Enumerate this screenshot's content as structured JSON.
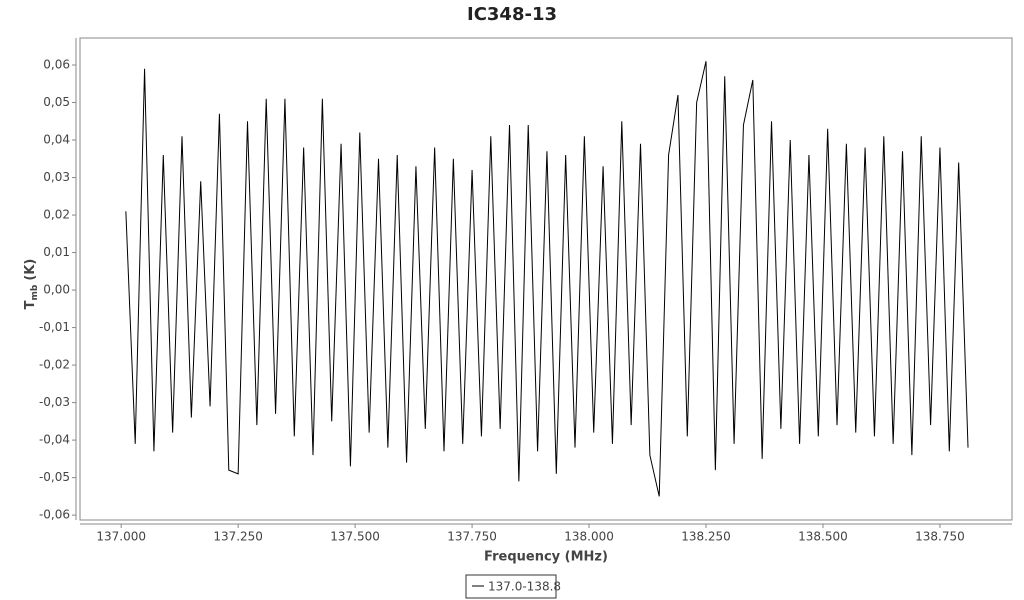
{
  "chart_data": {
    "type": "line",
    "title": "IC348-13",
    "xlabel": "Frequency (MHz)",
    "ylabel": {
      "main": "T",
      "sub": "mb",
      "unit": "(K)"
    },
    "xlim": [
      136.912,
      138.904
    ],
    "ylim": [
      -0.0613,
      0.0672
    ],
    "xticks": [
      {
        "value": 137.0,
        "label": "137.000"
      },
      {
        "value": 137.25,
        "label": "137.250"
      },
      {
        "value": 137.5,
        "label": "137.500"
      },
      {
        "value": 137.75,
        "label": "137.750"
      },
      {
        "value": 138.0,
        "label": "138.000"
      },
      {
        "value": 138.25,
        "label": "138.250"
      },
      {
        "value": 138.5,
        "label": "138.500"
      },
      {
        "value": 138.75,
        "label": "138.750"
      }
    ],
    "yticks": [
      {
        "value": -0.06,
        "label": "-0,06"
      },
      {
        "value": -0.05,
        "label": "-0,05"
      },
      {
        "value": -0.04,
        "label": "-0,04"
      },
      {
        "value": -0.03,
        "label": "-0,03"
      },
      {
        "value": -0.02,
        "label": "-0,02"
      },
      {
        "value": -0.01,
        "label": "-0,01"
      },
      {
        "value": 0.0,
        "label": "0,00"
      },
      {
        "value": 0.01,
        "label": "0,01"
      },
      {
        "value": 0.02,
        "label": "0,02"
      },
      {
        "value": 0.03,
        "label": "0,03"
      },
      {
        "value": 0.04,
        "label": "0,04"
      },
      {
        "value": 0.05,
        "label": "0,05"
      },
      {
        "value": 0.06,
        "label": "0,06"
      }
    ],
    "grid": false,
    "legend": "bottom",
    "x": [
      137.01,
      137.03,
      137.05,
      137.07,
      137.09,
      137.11,
      137.13,
      137.15,
      137.17,
      137.19,
      137.21,
      137.23,
      137.25,
      137.27,
      137.29,
      137.31,
      137.33,
      137.35,
      137.37,
      137.39,
      137.41,
      137.43,
      137.45,
      137.47,
      137.49,
      137.51,
      137.53,
      137.55,
      137.57,
      137.59,
      137.61,
      137.63,
      137.65,
      137.67,
      137.69,
      137.71,
      137.73,
      137.75,
      137.77,
      137.79,
      137.81,
      137.83,
      137.85,
      137.87,
      137.89,
      137.91,
      137.93,
      137.95,
      137.97,
      137.99,
      138.01,
      138.03,
      138.05,
      138.07,
      138.09,
      138.11,
      138.13,
      138.15,
      138.17,
      138.19,
      138.21,
      138.23,
      138.25,
      138.27,
      138.29,
      138.31,
      138.33,
      138.35,
      138.37,
      138.39,
      138.41,
      138.43,
      138.45,
      138.47,
      138.49,
      138.51,
      138.53,
      138.55,
      138.57,
      138.59,
      138.61,
      138.63,
      138.65,
      138.67,
      138.69,
      138.71,
      138.73,
      138.75,
      138.77,
      138.79,
      138.81
    ],
    "series": [
      {
        "name": "137.0-138.8",
        "color": "#000000",
        "values": [
          0.021,
          -0.041,
          0.059,
          -0.043,
          0.036,
          -0.038,
          0.041,
          -0.034,
          0.029,
          -0.031,
          0.047,
          -0.048,
          -0.049,
          0.045,
          -0.036,
          0.051,
          -0.033,
          0.051,
          -0.039,
          0.038,
          -0.044,
          0.051,
          -0.035,
          0.039,
          -0.047,
          0.042,
          -0.038,
          0.035,
          -0.042,
          0.036,
          -0.046,
          0.033,
          -0.037,
          0.038,
          -0.043,
          0.035,
          -0.041,
          0.032,
          -0.039,
          0.041,
          -0.037,
          0.044,
          -0.051,
          0.044,
          -0.043,
          0.037,
          -0.049,
          0.036,
          -0.042,
          0.041,
          -0.038,
          0.033,
          -0.041,
          0.045,
          -0.036,
          0.039,
          -0.044,
          -0.055,
          0.036,
          0.052,
          -0.039,
          0.05,
          0.061,
          -0.048,
          0.057,
          -0.041,
          0.044,
          0.056,
          -0.045,
          0.045,
          -0.037,
          0.04,
          -0.041,
          0.036,
          -0.039,
          0.043,
          -0.036,
          0.039,
          -0.038,
          0.038,
          -0.039,
          0.041,
          -0.041,
          0.037,
          -0.044,
          0.041,
          -0.036,
          0.038,
          -0.043,
          0.034,
          -0.042
        ]
      }
    ]
  }
}
